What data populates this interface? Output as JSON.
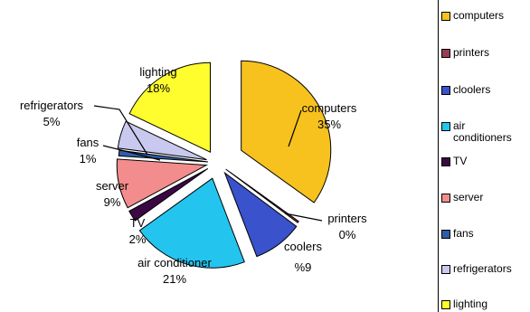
{
  "chart_data": {
    "type": "pie",
    "exploded": true,
    "categories": [
      "computers",
      "printers",
      "cloolers",
      "air conditioners",
      "TV",
      "server",
      "fans",
      "refrigerators",
      "lighting"
    ],
    "values": [
      35,
      0.3,
      9,
      21,
      2,
      9,
      1,
      5,
      18
    ],
    "colors": [
      "#f7c21d",
      "#9b3b55",
      "#3a52cc",
      "#23c5ef",
      "#3b0844",
      "#f38c8c",
      "#2e5ea8",
      "#c9c8ef",
      "#fffd2d"
    ],
    "slice_labels": [
      {
        "name": "computers",
        "value": "35%"
      },
      {
        "name": "printers",
        "value": "0%"
      },
      {
        "name": "coolers",
        "value": "%9"
      },
      {
        "name": "air conditioner",
        "value": "21%"
      },
      {
        "name": "TV",
        "value": "2%"
      },
      {
        "name": "server",
        "value": "9%"
      },
      {
        "name": "fans",
        "value": "1%"
      },
      {
        "name": "refrigerators",
        "value": "5%"
      },
      {
        "name": "lighting",
        "value": "18%"
      }
    ],
    "legend": {
      "position": "right",
      "entries": [
        "computers",
        "printers",
        "cloolers",
        "air\nconditioners",
        "TV",
        "server",
        "fans",
        "refrigerators",
        "lighting"
      ]
    }
  }
}
